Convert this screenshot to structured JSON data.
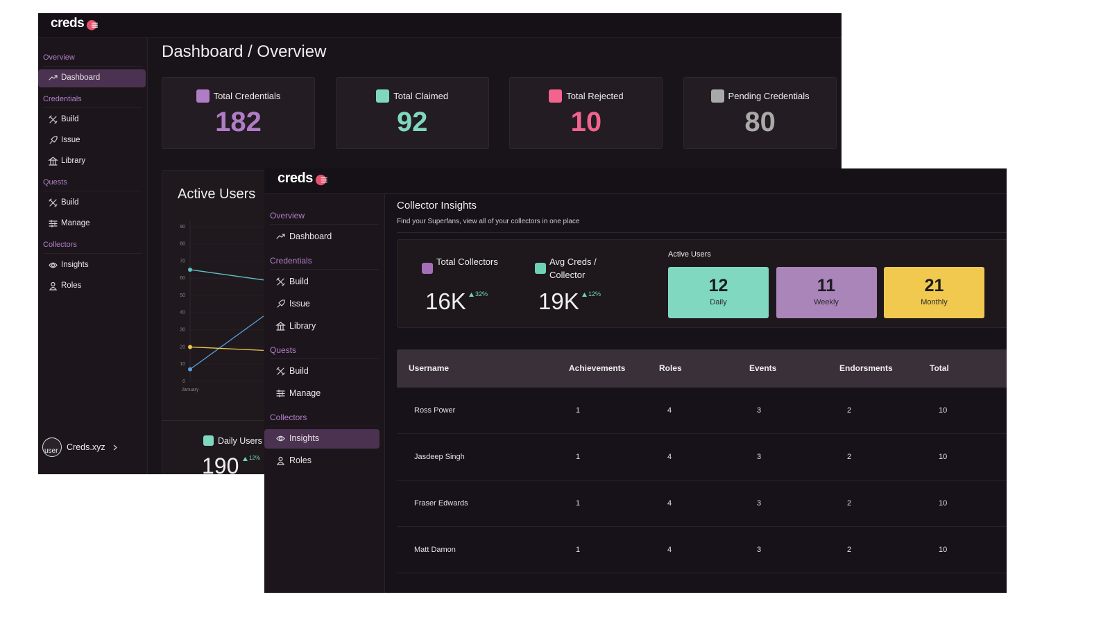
{
  "back": {
    "logo": "creds",
    "sidebar": [
      {
        "heading": "Overview",
        "items": [
          {
            "label": "Dashboard",
            "active": true
          }
        ]
      },
      {
        "heading": "Credentials",
        "items": [
          {
            "label": "Build"
          },
          {
            "label": "Issue"
          },
          {
            "label": "Library"
          }
        ]
      },
      {
        "heading": "Quests",
        "items": [
          {
            "label": "Build"
          },
          {
            "label": "Manage"
          }
        ]
      },
      {
        "heading": "Collectors",
        "items": [
          {
            "label": "Insights"
          },
          {
            "label": "Roles"
          }
        ]
      }
    ],
    "title": "Dashboard / Overview",
    "stats": [
      {
        "label": "Total Credentials",
        "value": 182,
        "color": "#b07cc6"
      },
      {
        "label": "Total Claimed",
        "value": 92,
        "color": "#7fd8be"
      },
      {
        "label": "Total Rejected",
        "value": 10,
        "color": "#f2638e"
      },
      {
        "label": "Pending Credentials",
        "value": 80,
        "color": "#a9a9a9"
      }
    ],
    "chart": {
      "type": "line",
      "title": "Active Users",
      "categories": [
        "January",
        null
      ],
      "series": [
        {
          "color": "#5fc3c6",
          "values": [
            65,
            59
          ]
        },
        {
          "color": "#5b9fdc",
          "values": [
            7,
            38
          ]
        },
        {
          "color": "#f0c94e",
          "values": [
            20,
            18
          ]
        }
      ],
      "ylim": [
        0,
        90
      ],
      "yticks": [
        0,
        10,
        20,
        30,
        40,
        50,
        60,
        70,
        80,
        90
      ]
    },
    "daily": {
      "label": "Daily Users",
      "value": 190,
      "change": "12%",
      "color": "#7fd8be"
    },
    "user": {
      "avatar": "user",
      "name": "Creds.xyz"
    }
  },
  "front": {
    "logo": "creds",
    "sidebar": [
      {
        "heading": "Overview",
        "items": [
          {
            "label": "Dashboard"
          }
        ]
      },
      {
        "heading": "Credentials",
        "items": [
          {
            "label": "Build"
          },
          {
            "label": "Issue"
          },
          {
            "label": "Library"
          }
        ]
      },
      {
        "heading": "Quests",
        "items": [
          {
            "label": "Build"
          },
          {
            "label": "Manage"
          }
        ]
      },
      {
        "heading": "Collectors",
        "items": [
          {
            "label": "Insights",
            "active": true
          },
          {
            "label": "Roles"
          }
        ]
      }
    ],
    "title": "Collector Insights",
    "subtitle": "Find your Superfans, view all of your collectors in one place",
    "stats": [
      {
        "label": "Total Collectors",
        "value": "16K",
        "change": "32%",
        "color": "#a46fb8"
      },
      {
        "label": "Avg Creds / Collector",
        "value": "19K",
        "change": "12%",
        "color": "#6fd1b4"
      }
    ],
    "active_users": {
      "label": "Active Users",
      "tiles": [
        {
          "value": 12,
          "label": "Daily",
          "color": "#80d8c0"
        },
        {
          "value": 11,
          "label": "Weekly",
          "color": "#a985ba"
        },
        {
          "value": 21,
          "label": "Monthly",
          "color": "#f0c94e"
        }
      ]
    },
    "table": {
      "columns": [
        "Username",
        "Achievements",
        "Roles",
        "Events",
        "Endorsments",
        "Total"
      ],
      "rows": [
        [
          "Ross Power",
          1,
          4,
          3,
          2,
          10
        ],
        [
          "Jasdeep Singh",
          1,
          4,
          3,
          2,
          10
        ],
        [
          "Fraser Edwards",
          1,
          4,
          3,
          2,
          10
        ],
        [
          "Matt Damon",
          1,
          4,
          3,
          2,
          10
        ]
      ]
    }
  }
}
